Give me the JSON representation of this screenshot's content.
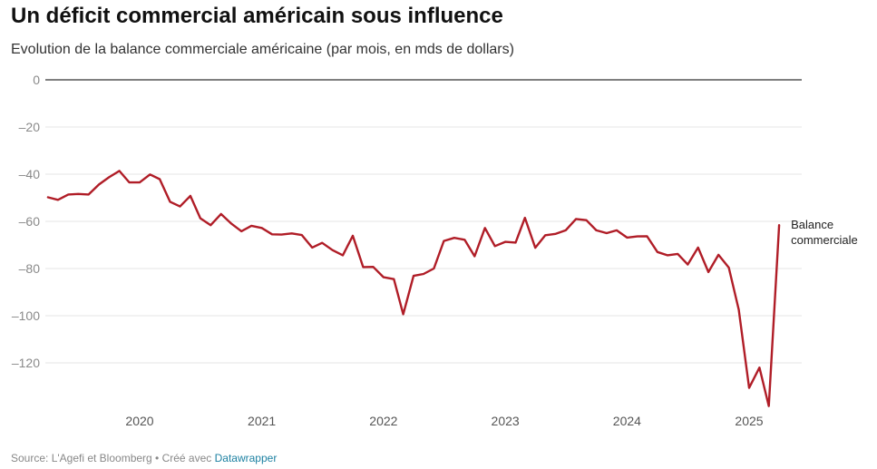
{
  "header": {
    "title": "Un déficit commercial américain sous influence",
    "subtitle": "Evolution de la balance commerciale américaine (par mois, en mds de dollars)"
  },
  "footer": {
    "source_text": "Source: L'Agefi et Bloomberg • Créé avec ",
    "link_text": "Datawrapper"
  },
  "colors": {
    "line": "#b01d27",
    "grid": "#e6e6e6",
    "zero_line": "#333333"
  },
  "chart_data": {
    "type": "line",
    "title": "Un déficit commercial américain sous influence",
    "subtitle": "Evolution de la balance commerciale américaine (par mois, en mds de dollars)",
    "xlabel": "",
    "ylabel": "",
    "ylim": [
      -140,
      0
    ],
    "yticks": [
      0,
      -20,
      -40,
      -60,
      -80,
      -100,
      -120
    ],
    "ytick_labels": [
      "0",
      "–20",
      "–40",
      "–60",
      "–80",
      "–100",
      "–120"
    ],
    "xticks": [
      "2020",
      "2021",
      "2022",
      "2023",
      "2024",
      "2025"
    ],
    "grid": true,
    "legend": "inline-end",
    "series": [
      {
        "name": "Balance commerciale",
        "name_lines": [
          "Balance",
          "commerciale"
        ],
        "x": [
          "2019-04",
          "2019-05",
          "2019-06",
          "2019-07",
          "2019-08",
          "2019-09",
          "2019-10",
          "2019-11",
          "2019-12",
          "2020-01",
          "2020-02",
          "2020-03",
          "2020-04",
          "2020-05",
          "2020-06",
          "2020-07",
          "2020-08",
          "2020-09",
          "2020-10",
          "2020-11",
          "2020-12",
          "2021-01",
          "2021-02",
          "2021-03",
          "2021-04",
          "2021-05",
          "2021-06",
          "2021-07",
          "2021-08",
          "2021-09",
          "2021-10",
          "2021-11",
          "2021-12",
          "2022-01",
          "2022-02",
          "2022-03",
          "2022-04",
          "2022-05",
          "2022-06",
          "2022-07",
          "2022-08",
          "2022-09",
          "2022-10",
          "2022-11",
          "2022-12",
          "2023-01",
          "2023-02",
          "2023-03",
          "2023-04",
          "2023-05",
          "2023-06",
          "2023-07",
          "2023-08",
          "2023-09",
          "2023-10",
          "2023-11",
          "2023-12",
          "2024-01",
          "2024-02",
          "2024-03",
          "2024-04",
          "2024-05",
          "2024-06",
          "2024-07",
          "2024-08",
          "2024-09",
          "2024-10",
          "2024-11",
          "2024-12",
          "2025-01",
          "2025-02",
          "2025-03",
          "2025-04"
        ],
        "values": [
          -49.8,
          -50.9,
          -48.6,
          -48.4,
          -48.6,
          -44.4,
          -41.3,
          -38.6,
          -43.5,
          -43.5,
          -40.1,
          -42.1,
          -51.7,
          -53.7,
          -49.2,
          -58.7,
          -61.6,
          -56.9,
          -60.9,
          -64.2,
          -61.9,
          -62.8,
          -65.5,
          -65.6,
          -65.1,
          -65.8,
          -71.1,
          -69.1,
          -72.2,
          -74.4,
          -66.1,
          -79.4,
          -79.3,
          -83.7,
          -84.5,
          -99.4,
          -83.1,
          -82.3,
          -80.0,
          -68.3,
          -67.0,
          -67.8,
          -74.8,
          -62.8,
          -70.5,
          -68.7,
          -69.0,
          -58.5,
          -71.2,
          -65.9,
          -65.3,
          -63.8,
          -59.0,
          -59.5,
          -63.8,
          -65.0,
          -63.8,
          -66.9,
          -66.4,
          -66.3,
          -73.0,
          -74.4,
          -73.8,
          -78.3,
          -71.1,
          -81.5,
          -74.2,
          -79.6,
          -97.5,
          -130.6,
          -122.0,
          -138.3,
          -61.6
        ]
      }
    ]
  }
}
